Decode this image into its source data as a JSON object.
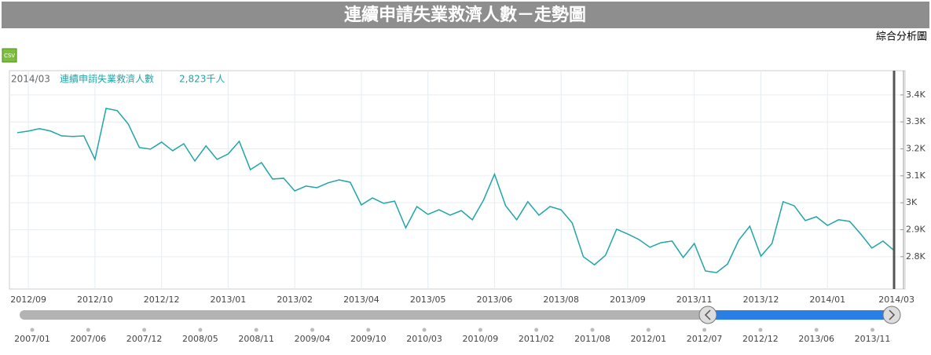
{
  "page": {
    "title": "連續申請失業救濟人數－走勢圖",
    "tab": "綜合分析圖",
    "csv": "CSV"
  },
  "chart_data": {
    "type": "line",
    "header_date": "2014/03",
    "header_value": "2,823千人",
    "categories": [
      null,
      "2012/09",
      null,
      null,
      null,
      null,
      null,
      "2012/10",
      null,
      null,
      null,
      null,
      null,
      "2012/12",
      null,
      null,
      null,
      null,
      null,
      "2013/01",
      null,
      null,
      null,
      null,
      null,
      "2013/02",
      null,
      null,
      null,
      null,
      null,
      "2013/04",
      null,
      null,
      null,
      null,
      null,
      "2013/05",
      null,
      null,
      null,
      null,
      null,
      "2013/06",
      null,
      null,
      null,
      null,
      null,
      "2013/08",
      null,
      null,
      null,
      null,
      null,
      "2013/09",
      null,
      null,
      null,
      null,
      null,
      "2013/11",
      null,
      null,
      null,
      null,
      null,
      "2013/12",
      null,
      null,
      null,
      null,
      null,
      "2014/01",
      null,
      null,
      null,
      null,
      null,
      "2014/03"
    ],
    "series": [
      {
        "name": "連續申請失業救濟人數",
        "color": "#20a5a8",
        "values": [
          3260,
          3266,
          3275,
          3266,
          3248,
          3246,
          3248,
          3161,
          3350,
          3342,
          3292,
          3205,
          3199,
          3225,
          3193,
          3219,
          3155,
          3211,
          3161,
          3181,
          3228,
          3123,
          3149,
          3088,
          3091,
          3044,
          3062,
          3056,
          3074,
          3085,
          3076,
          2992,
          3018,
          2998,
          3006,
          2907,
          2986,
          2957,
          2974,
          2954,
          2971,
          2937,
          3009,
          3106,
          2989,
          2937,
          3004,
          2954,
          2986,
          2974,
          2925,
          2800,
          2770,
          2805,
          2902,
          2884,
          2864,
          2835,
          2852,
          2858,
          2797,
          2849,
          2747,
          2741,
          2773,
          2861,
          2913,
          2802,
          2849,
          3004,
          2989,
          2934,
          2948,
          2916,
          2937,
          2931,
          2884,
          2832,
          2858,
          2823
        ]
      }
    ],
    "ylim": [
      2680,
      3490
    ],
    "yticks": [
      {
        "value": 2800,
        "label": "2.8K"
      },
      {
        "value": 2900,
        "label": "2.9K"
      },
      {
        "value": 3000,
        "label": "3K"
      },
      {
        "value": 3100,
        "label": "3.1K"
      },
      {
        "value": 3200,
        "label": "3.2K"
      },
      {
        "value": 3300,
        "label": "3.3K"
      },
      {
        "value": 3400,
        "label": "3.4K"
      }
    ],
    "grid": true
  },
  "navigator": {
    "labels": [
      "2007/01",
      "2007/06",
      "2007/12",
      "2008/05",
      "2008/11",
      "2009/04",
      "2009/10",
      "2010/03",
      "2010/09",
      "2011/02",
      "2011/08",
      "2012/01",
      "2012/07",
      "2012/12",
      "2013/06",
      "2013/11"
    ]
  }
}
